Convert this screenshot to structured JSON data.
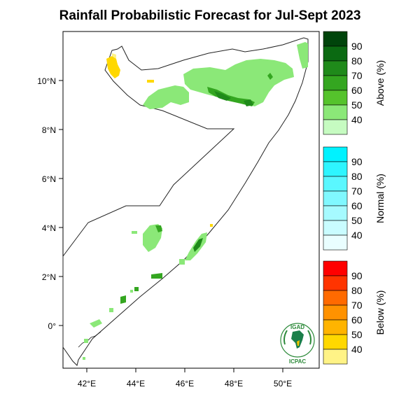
{
  "title": "Rainfall Probabilistic Forecast for Jul-Sept 2023",
  "axes": {
    "x_ticks": [
      "42°E",
      "44°E",
      "46°E",
      "48°E",
      "50°E"
    ],
    "y_ticks": [
      "10°N",
      "8°N",
      "6°N",
      "4°N",
      "2°N",
      "0°"
    ]
  },
  "legends": [
    {
      "title": "Above (%)",
      "labels": [
        "90",
        "80",
        "70",
        "60",
        "50",
        "40"
      ],
      "colors": [
        "#00440b",
        "#0b6a12",
        "#1f8a1a",
        "#34a620",
        "#55c32c",
        "#8be878",
        "#c6fbc1"
      ]
    },
    {
      "title": "Normal (%)",
      "labels": [
        "90",
        "80",
        "70",
        "60",
        "50",
        "40"
      ],
      "colors": [
        "#00f2ff",
        "#2ef5ff",
        "#5af7ff",
        "#80f8ff",
        "#a6faff",
        "#c9fcff",
        "#e9feff"
      ]
    },
    {
      "title": "Below (%)",
      "labels": [
        "90",
        "80",
        "70",
        "60",
        "50",
        "40"
      ],
      "colors": [
        "#ff0000",
        "#ff3400",
        "#ff6a00",
        "#ff9200",
        "#ffb400",
        "#ffd800",
        "#fff386"
      ]
    }
  ],
  "logo": {
    "top_text": "IGAD",
    "bottom_text": "ICPAC"
  }
}
